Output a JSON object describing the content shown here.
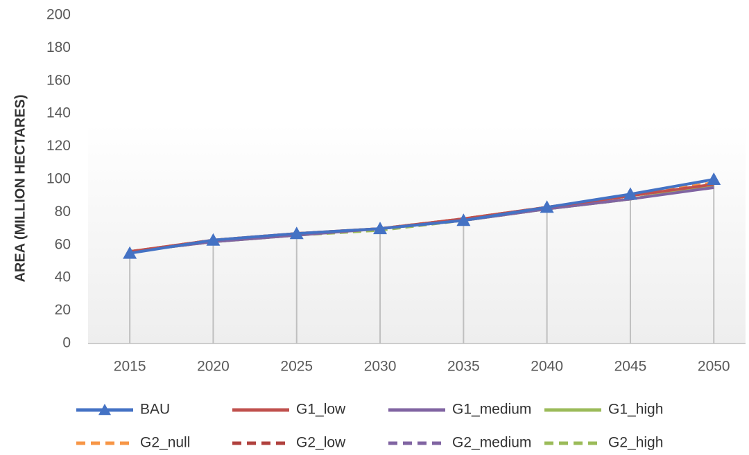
{
  "chart_data": {
    "type": "line",
    "y_label": "AREA (MILLION HECTARES)",
    "categories": [
      "2015",
      "2020",
      "2025",
      "2030",
      "2035",
      "2040",
      "2045",
      "2050"
    ],
    "series": [
      {
        "name": "BAU",
        "color": "#4472c4",
        "marker": "triangle",
        "dashed": false,
        "values": [
          55,
          63,
          67,
          70,
          75,
          83,
          91,
          100
        ]
      },
      {
        "name": "G1_low",
        "color": "#c0504d",
        "dashed": false,
        "values": [
          56,
          63,
          67,
          70,
          76,
          83,
          90,
          97
        ]
      },
      {
        "name": "G1_medium",
        "color": "#8064a2",
        "dashed": false,
        "values": [
          56,
          62,
          66,
          70,
          75,
          82,
          88,
          95
        ]
      },
      {
        "name": "G1_high",
        "color": "#9bbb59",
        "dashed": false,
        "values": [
          56,
          62,
          66,
          70,
          75,
          82,
          88,
          96
        ]
      },
      {
        "name": "G2_null",
        "color": "#f79646",
        "dashed": true,
        "values": [
          56,
          63,
          67,
          70,
          76,
          83,
          90,
          98
        ]
      },
      {
        "name": "G2_low",
        "color": "#b0413e",
        "dashed": true,
        "values": [
          56,
          63,
          67,
          70,
          76,
          83,
          90,
          98
        ]
      },
      {
        "name": "G2_medium",
        "color": "#8064a2",
        "dashed": true,
        "values": [
          56,
          62,
          66,
          70,
          75,
          82,
          88,
          96
        ]
      },
      {
        "name": "G2_high",
        "color": "#9bbb59",
        "dashed": true,
        "values": [
          56,
          62,
          66,
          69,
          75,
          82,
          88,
          96
        ]
      }
    ],
    "ylim": [
      0,
      200
    ],
    "yticks": [
      0,
      20,
      40,
      60,
      80,
      100,
      120,
      140,
      160,
      180,
      200
    ],
    "drop_lines": true,
    "grid": false,
    "legend": "bottom"
  }
}
